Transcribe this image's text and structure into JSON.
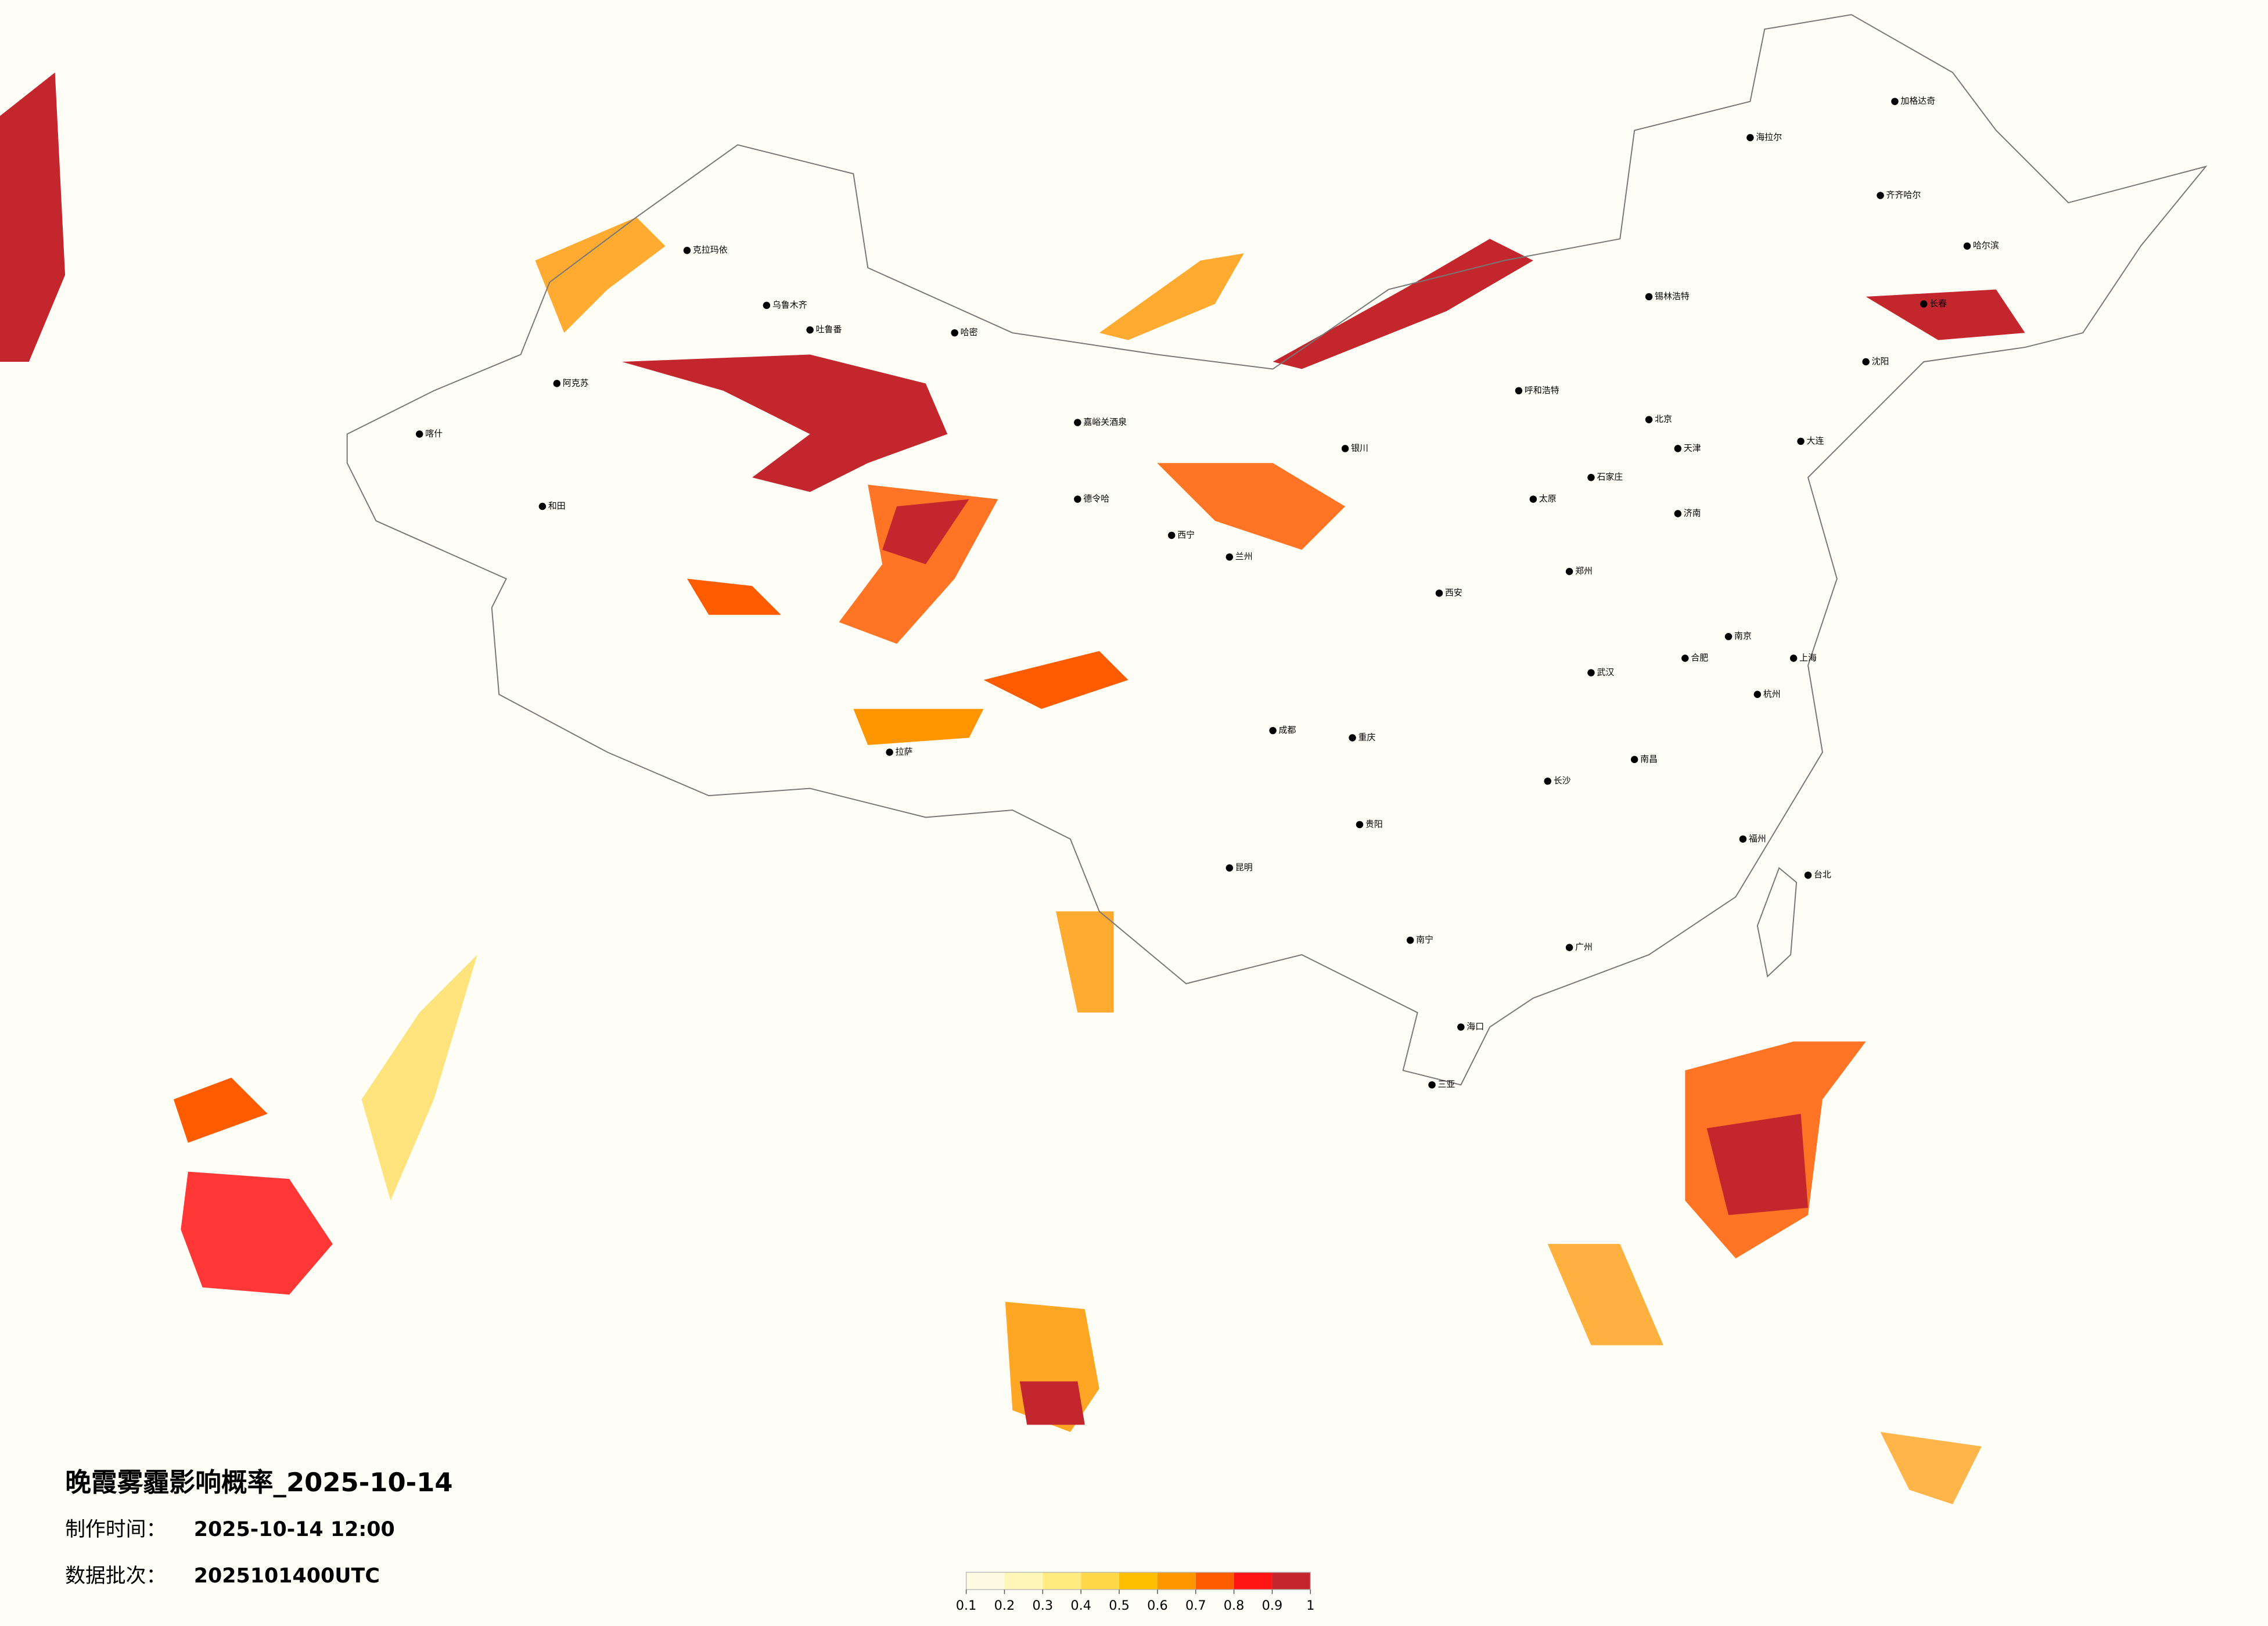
{
  "title": "晚霞雾霾影响概率_2025-10-14",
  "info": [
    {
      "label": "制作时间：",
      "value": "2025-10-14 12:00"
    },
    {
      "label": "数据批次：",
      "value": "2025101400UTC"
    }
  ],
  "colorbar": {
    "ticks": [
      0.1,
      0.2,
      0.3,
      0.4,
      0.5,
      0.6,
      0.7,
      0.8,
      0.9,
      1
    ],
    "colors": [
      "#fffbe3",
      "#fff6b8",
      "#ffeb80",
      "#ffd84a",
      "#ffbe00",
      "#ff9600",
      "#ff5c00",
      "#ff1414",
      "#c3272d"
    ]
  },
  "cities": [
    "乌鲁木齐",
    "克拉玛依",
    "喀什",
    "和田",
    "阿克苏",
    "哈密",
    "吐鲁番",
    "嘉峪关酒泉",
    "德令哈",
    "拉萨",
    "西宁",
    "兰州",
    "银川",
    "呼和浩特",
    "锡林浩特",
    "北京",
    "天津",
    "石家庄",
    "太原",
    "济南",
    "郑州",
    "西安",
    "成都",
    "重庆",
    "武汉",
    "长沙",
    "南昌",
    "合肥",
    "南京",
    "上海",
    "杭州",
    "福州",
    "广州",
    "南宁",
    "海口",
    "三亚",
    "昆明",
    "贵阳",
    "哈尔滨",
    "长春",
    "沈阳",
    "大连",
    "台北",
    "海拉尔",
    "齐齐哈尔",
    "加格达奇"
  ]
}
